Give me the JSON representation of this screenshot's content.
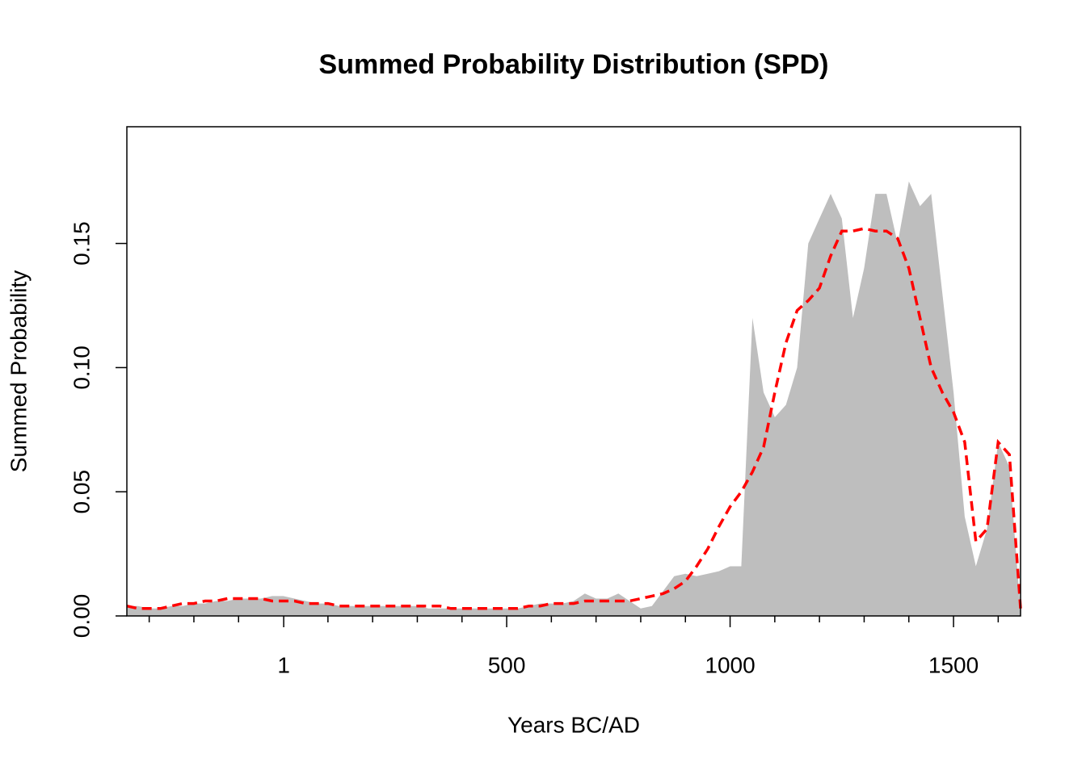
{
  "chart_data": {
    "type": "area",
    "title": "Summed Probability Distribution (SPD)",
    "x_label": "Years BC/AD",
    "y_label": "Summed Probability",
    "x": [
      -350,
      -325,
      -300,
      -275,
      -250,
      -225,
      -200,
      -175,
      -150,
      -125,
      -100,
      -75,
      -50,
      -25,
      0,
      25,
      50,
      75,
      100,
      125,
      150,
      175,
      200,
      225,
      250,
      275,
      300,
      325,
      350,
      375,
      400,
      425,
      450,
      475,
      500,
      525,
      550,
      575,
      600,
      625,
      650,
      675,
      700,
      725,
      750,
      775,
      800,
      825,
      850,
      875,
      900,
      925,
      950,
      975,
      1000,
      1025,
      1050,
      1075,
      1100,
      1125,
      1150,
      1175,
      1200,
      1225,
      1250,
      1275,
      1300,
      1325,
      1350,
      1375,
      1400,
      1425,
      1450,
      1475,
      1500,
      1525,
      1550,
      1575,
      1600,
      1625,
      1650
    ],
    "series": [
      {
        "color": "#bebebe",
        "style": "area",
        "values": [
          0.004,
          0.004,
          0.003,
          0.003,
          0.004,
          0.004,
          0.005,
          0.005,
          0.006,
          0.006,
          0.007,
          0.007,
          0.007,
          0.008,
          0.008,
          0.007,
          0.006,
          0.005,
          0.005,
          0.004,
          0.004,
          0.004,
          0.004,
          0.004,
          0.004,
          0.004,
          0.004,
          0.003,
          0.003,
          0.003,
          0.003,
          0.003,
          0.003,
          0.003,
          0.003,
          0.003,
          0.004,
          0.005,
          0.005,
          0.005,
          0.006,
          0.009,
          0.007,
          0.007,
          0.009,
          0.006,
          0.003,
          0.004,
          0.01,
          0.016,
          0.017,
          0.016,
          0.017,
          0.018,
          0.02,
          0.02,
          0.12,
          0.09,
          0.08,
          0.085,
          0.1,
          0.15,
          0.16,
          0.17,
          0.16,
          0.12,
          0.14,
          0.17,
          0.17,
          0.15,
          0.175,
          0.165,
          0.17,
          0.13,
          0.09,
          0.04,
          0.02,
          0.035,
          0.07,
          0.06,
          0.002
        ]
      },
      {
        "color": "#ff0000",
        "style": "dashed",
        "values": [
          0.004,
          0.003,
          0.003,
          0.003,
          0.004,
          0.005,
          0.005,
          0.006,
          0.006,
          0.007,
          0.007,
          0.007,
          0.007,
          0.006,
          0.006,
          0.006,
          0.005,
          0.005,
          0.005,
          0.004,
          0.004,
          0.004,
          0.004,
          0.004,
          0.004,
          0.004,
          0.004,
          0.004,
          0.004,
          0.003,
          0.003,
          0.003,
          0.003,
          0.003,
          0.003,
          0.003,
          0.004,
          0.004,
          0.005,
          0.005,
          0.005,
          0.006,
          0.006,
          0.006,
          0.006,
          0.006,
          0.007,
          0.008,
          0.009,
          0.011,
          0.014,
          0.02,
          0.027,
          0.036,
          0.044,
          0.05,
          0.058,
          0.068,
          0.09,
          0.11,
          0.123,
          0.127,
          0.132,
          0.145,
          0.155,
          0.155,
          0.156,
          0.155,
          0.155,
          0.152,
          0.14,
          0.12,
          0.1,
          0.09,
          0.082,
          0.07,
          0.03,
          0.035,
          0.07,
          0.065,
          0.003
        ]
      }
    ],
    "xlim": [
      -350,
      1650
    ],
    "ylim": [
      0,
      0.197
    ],
    "xticks": [
      1,
      500,
      1000,
      1500
    ],
    "xminorticks": [
      -300,
      -200,
      -100,
      100,
      200,
      300,
      400,
      600,
      700,
      800,
      900,
      1100,
      1200,
      1300,
      1400,
      1600
    ],
    "yticks": [
      {
        "value": 0,
        "label": "0.00"
      },
      {
        "value": 0.05,
        "label": "0.05"
      },
      {
        "value": 0.1,
        "label": "0.10"
      },
      0.15
    ]
  }
}
